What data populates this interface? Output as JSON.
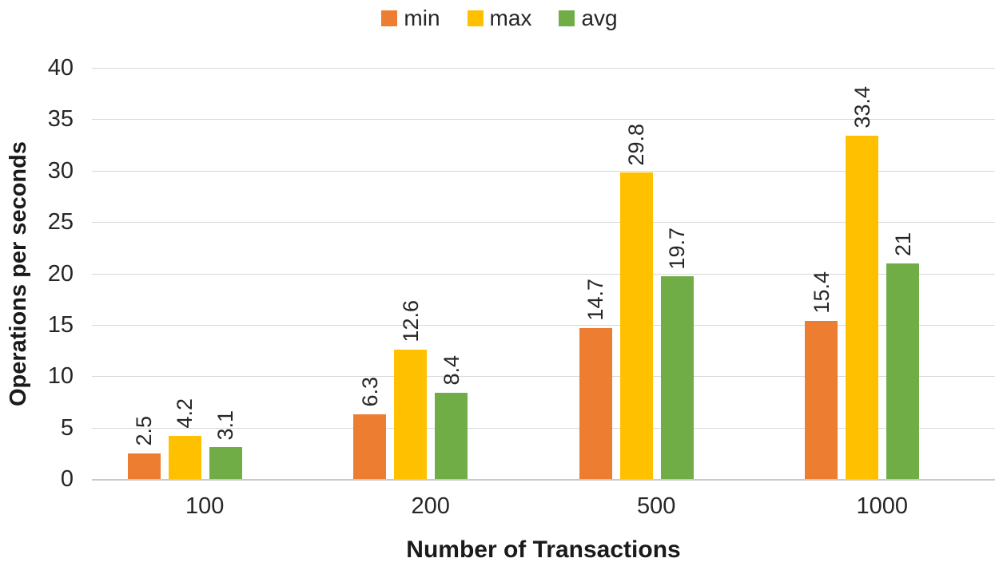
{
  "chart_data": {
    "type": "bar",
    "title": "",
    "xlabel": "Number of Transactions",
    "ylabel": "Operations per seconds",
    "categories": [
      "100",
      "200",
      "500",
      "1000"
    ],
    "series": [
      {
        "name": "min",
        "color": "#ED7D31",
        "values": [
          2.5,
          6.3,
          14.7,
          15.4
        ],
        "labels": [
          "2.5",
          "6.3",
          "14.7",
          "15.4"
        ]
      },
      {
        "name": "max",
        "color": "#FFC000",
        "values": [
          4.2,
          12.6,
          29.8,
          33.4
        ],
        "labels": [
          "4.2",
          "12.6",
          "29.8",
          "33.4"
        ]
      },
      {
        "name": "avg",
        "color": "#70AD47",
        "values": [
          3.1,
          8.4,
          19.7,
          21
        ],
        "labels": [
          "3.1",
          "8.4",
          "19.7",
          "21"
        ]
      }
    ],
    "ylim": [
      0,
      40
    ],
    "ytick_step": 5,
    "ytick_labels": [
      "0",
      "5",
      "10",
      "15",
      "20",
      "25",
      "30",
      "35",
      "40"
    ],
    "grid": true,
    "data_labels_rotated": true,
    "legend_position": "top-center"
  },
  "colors": {
    "gridline": "#D9D9D9",
    "axis_line": "#C9C9C9",
    "tick_text": "#262626",
    "title_text": "#1A1A1A",
    "background": "#FFFFFF"
  }
}
